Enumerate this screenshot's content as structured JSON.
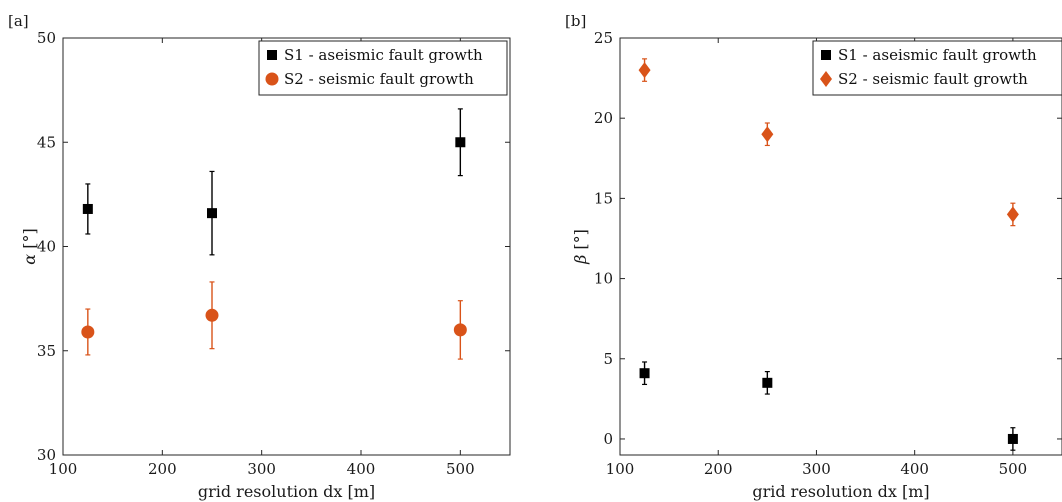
{
  "chart_data": [
    {
      "type": "scatter",
      "panel_label": "[a]",
      "xlabel": "grid resolution dx [m]",
      "ylabel_var": "α",
      "ylabel_unit": "[°]",
      "xlim": [
        100,
        550
      ],
      "ylim": [
        30,
        50
      ],
      "xticks": [
        100,
        200,
        300,
        400,
        500
      ],
      "yticks": [
        30,
        35,
        40,
        45,
        50
      ],
      "legend_position": "top-right",
      "series": [
        {
          "name": "S1 - aseismic fault growth",
          "marker": "square",
          "color": "#000000",
          "x": [
            125,
            250,
            500
          ],
          "y": [
            41.8,
            41.6,
            45.0
          ],
          "err": [
            1.2,
            2.0,
            1.6
          ]
        },
        {
          "name": "S2 - seismic fault growth",
          "marker": "circle",
          "color": "#d95319",
          "x": [
            125,
            250,
            500
          ],
          "y": [
            35.9,
            36.7,
            36.0
          ],
          "err": [
            1.1,
            1.6,
            1.4
          ]
        }
      ]
    },
    {
      "type": "scatter",
      "panel_label": "[b]",
      "xlabel": "grid resolution dx [m]",
      "ylabel_var": "β",
      "ylabel_unit": "[°]",
      "xlim": [
        100,
        550
      ],
      "ylim": [
        -1,
        25
      ],
      "xticks": [
        100,
        200,
        300,
        400,
        500
      ],
      "yticks": [
        0,
        5,
        10,
        15,
        20,
        25
      ],
      "legend_position": "top-right",
      "series": [
        {
          "name": "S1 - aseismic fault growth",
          "marker": "square",
          "color": "#000000",
          "x": [
            125,
            250,
            500
          ],
          "y": [
            4.1,
            3.5,
            0.0
          ],
          "err": [
            0.7,
            0.7,
            0.7
          ]
        },
        {
          "name": "S2 - seismic fault growth",
          "marker": "diamond",
          "color": "#d95319",
          "x": [
            125,
            250,
            500
          ],
          "y": [
            23.0,
            19.0,
            14.0
          ],
          "err": [
            0.7,
            0.7,
            0.7
          ]
        }
      ]
    }
  ]
}
